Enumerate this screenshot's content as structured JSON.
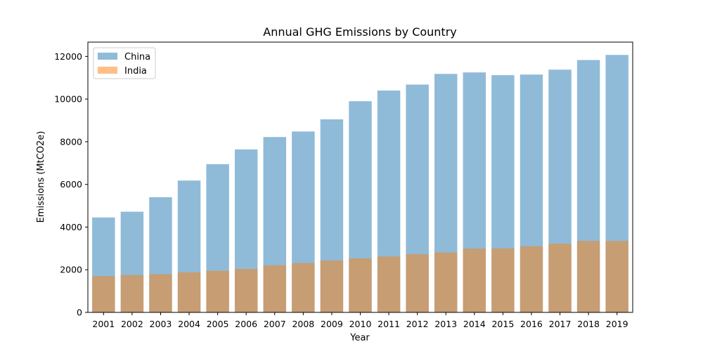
{
  "chart_data": {
    "type": "bar",
    "title": "Annual GHG Emissions by Country",
    "xlabel": "Year",
    "ylabel": "Emissions (MtCO2e)",
    "categories": [
      "2001",
      "2002",
      "2003",
      "2004",
      "2005",
      "2006",
      "2007",
      "2008",
      "2009",
      "2010",
      "2011",
      "2012",
      "2013",
      "2014",
      "2015",
      "2016",
      "2017",
      "2018",
      "2019"
    ],
    "series": [
      {
        "name": "China",
        "color": "#1f77b4",
        "opacity": 0.5,
        "values": [
          4450,
          4720,
          5400,
          6180,
          6950,
          7640,
          8220,
          8480,
          9050,
          9900,
          10400,
          10680,
          11180,
          11250,
          11120,
          11150,
          11380,
          11830,
          12070
        ]
      },
      {
        "name": "India",
        "color": "#ff7f0e",
        "opacity": 0.5,
        "values": [
          1700,
          1750,
          1790,
          1880,
          1950,
          2040,
          2210,
          2310,
          2430,
          2530,
          2620,
          2730,
          2810,
          2990,
          3000,
          3100,
          3220,
          3350,
          3350
        ]
      }
    ],
    "ylim": [
      0,
      12670
    ],
    "yticks": [
      0,
      2000,
      4000,
      6000,
      8000,
      10000,
      12000
    ],
    "legend_position": "top-left",
    "grid": false
  }
}
